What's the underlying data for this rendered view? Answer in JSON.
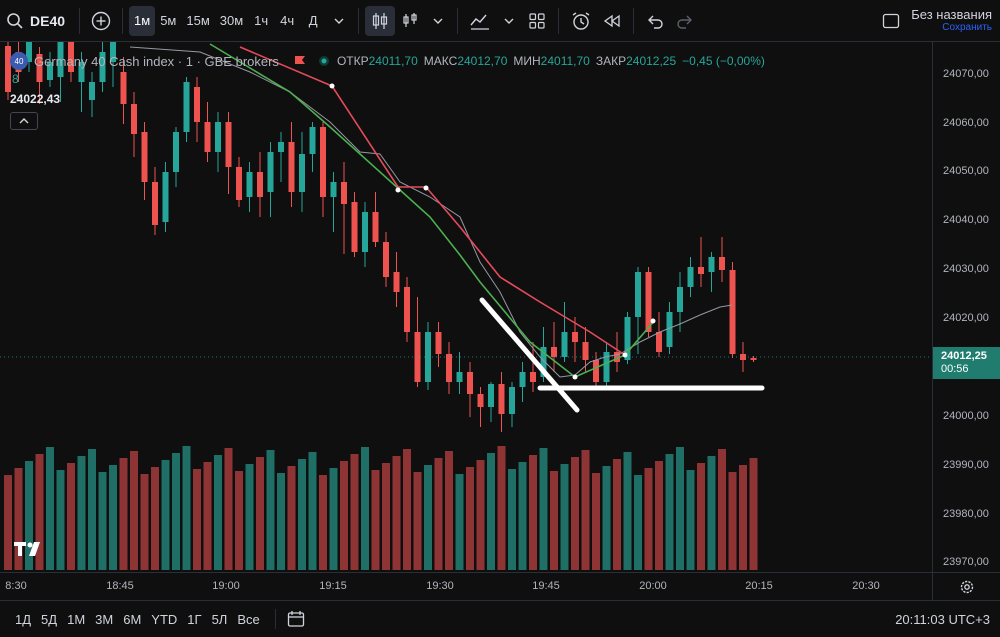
{
  "toolbar": {
    "symbol": "DE40",
    "intervals": [
      "1м",
      "5м",
      "15м",
      "30м",
      "1ч",
      "4ч",
      "Д"
    ],
    "active_interval": "1м"
  },
  "layout": {
    "name": "Без названия",
    "save_label": "Сохранить"
  },
  "legend": {
    "badge": "40",
    "title": "Germany 40 Cash index · 1 · GBE brokers",
    "open_label": "ОТКР",
    "open_value": "24011,70",
    "high_label": "МАКС",
    "high_value": "24012,70",
    "low_label": "МИН",
    "low_value": "24011,70",
    "close_label": "ЗАКР",
    "close_value": "24012,25",
    "change": "−0,45 (−0,00%)",
    "volume": "8",
    "ma_value": "24022,43"
  },
  "price_scale": {
    "labels": [
      "24070,00",
      "24060,00",
      "24050,00",
      "24040,00",
      "24030,00",
      "24020,00",
      "24000,00",
      "23990,00",
      "23980,00",
      "23970,00"
    ],
    "current_price": "24012,25",
    "countdown": "00:56"
  },
  "time_scale": {
    "labels": [
      "8:30",
      "18:45",
      "19:00",
      "19:15",
      "19:30",
      "19:45",
      "20:00",
      "20:15",
      "20:30"
    ]
  },
  "bottom": {
    "ranges": [
      "1Д",
      "5Д",
      "1М",
      "3М",
      "6М",
      "YTD",
      "1Г",
      "5Л",
      "Все"
    ],
    "clock": "20:11:03 UTC+3"
  },
  "colors": {
    "up": "#26a69a",
    "down": "#ef5350",
    "vol_up": "#1f6f66",
    "vol_down": "#8e3434",
    "accent": "#2962ff"
  }
}
